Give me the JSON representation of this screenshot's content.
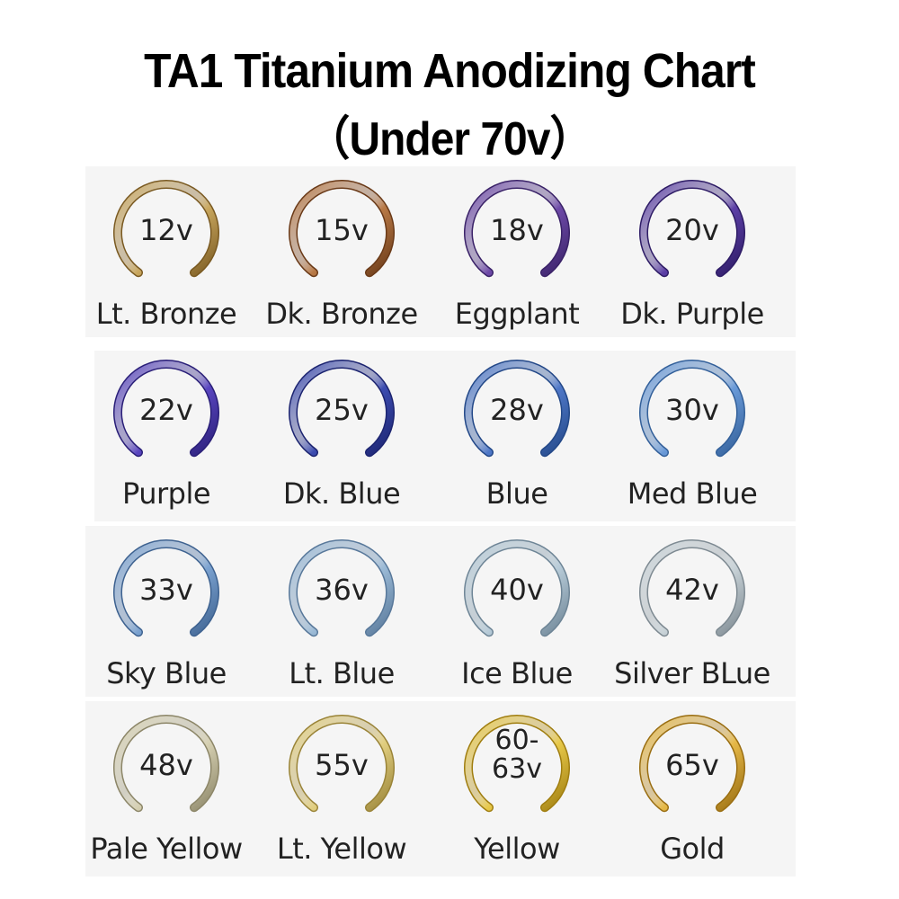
{
  "title_line1": "TA1 Titanium Anodizing Chart",
  "title_line2": "（Under 70v）",
  "rings": [
    {
      "volt": "12v",
      "name": "Lt. Bronze",
      "color": "#c9a75e",
      "dark": "#7a5a22"
    },
    {
      "volt": "15v",
      "name": "Dk. Bronze",
      "color": "#b87946",
      "dark": "#6a3a18"
    },
    {
      "volt": "18v",
      "name": "Eggplant",
      "color": "#6e4aa8",
      "dark": "#3a2268"
    },
    {
      "volt": "20v",
      "name": "Dk. Purple",
      "color": "#5c3fa6",
      "dark": "#2e1c66"
    },
    {
      "volt": "22v",
      "name": "Purple",
      "color": "#5a46c0",
      "dark": "#2a1f78"
    },
    {
      "volt": "25v",
      "name": "Dk. Blue",
      "color": "#3c4cb0",
      "dark": "#1c2470"
    },
    {
      "volt": "28v",
      "name": "Blue",
      "color": "#4f78c8",
      "dark": "#234888"
    },
    {
      "volt": "30v",
      "name": "Med Blue",
      "color": "#6a9ad8",
      "dark": "#33609a"
    },
    {
      "volt": "33v",
      "name": "Sky Blue",
      "color": "#7ba2d0",
      "dark": "#3e6290"
    },
    {
      "volt": "36v",
      "name": "Lt. Blue",
      "color": "#9bbad6",
      "dark": "#58789a"
    },
    {
      "volt": "40v",
      "name": "Ice Blue",
      "color": "#b7cbd8",
      "dark": "#6e8596"
    },
    {
      "volt": "42v",
      "name": "Silver BLue",
      "color": "#c9d3d8",
      "dark": "#7e8a92"
    },
    {
      "volt": "48v",
      "name": "Pale Yellow",
      "color": "#d6d0b2",
      "dark": "#8c8668"
    },
    {
      "volt": "55v",
      "name": "Lt. Yellow",
      "color": "#e2cf80",
      "dark": "#9a8438"
    },
    {
      "volt": "60-\n63v",
      "volt_line1": "60-",
      "volt_line2": "63v",
      "name": "Yellow",
      "color": "#e8c94a",
      "dark": "#a07e10"
    },
    {
      "volt": "65v",
      "name": "Gold",
      "color": "#e6b948",
      "dark": "#9a6e12"
    }
  ]
}
